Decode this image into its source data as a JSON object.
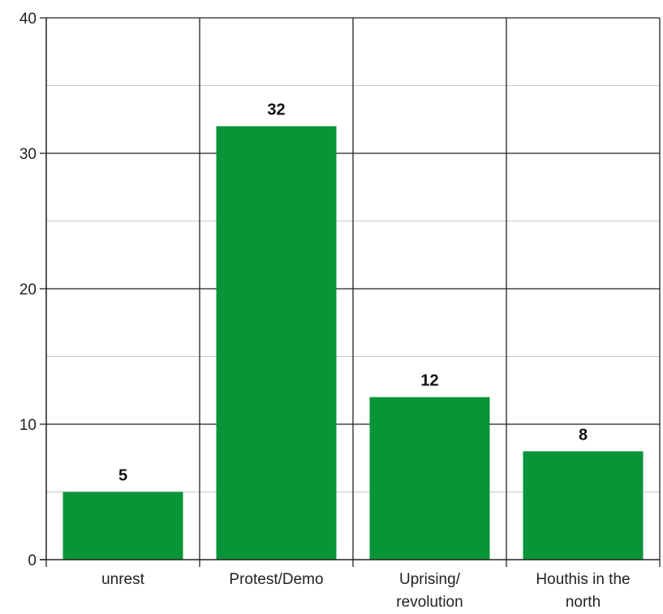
{
  "chart_data": {
    "type": "bar",
    "title": "",
    "xlabel": "",
    "ylabel": "",
    "ylim": [
      0,
      40
    ],
    "yticks": [
      0,
      10,
      20,
      30,
      40
    ],
    "minor_gridlines": [
      5,
      15,
      25,
      35
    ],
    "grid": true,
    "categories": [
      [
        "unrest"
      ],
      [
        "Protest/Demo"
      ],
      [
        "Uprising/",
        "revolution"
      ],
      [
        "Houthis in the",
        "north"
      ]
    ],
    "values": [
      5,
      32,
      12,
      8
    ],
    "data_labels": [
      "5",
      "32",
      "12",
      "8"
    ],
    "bar_color": "#0a9438",
    "axis_color": "#222222",
    "major_grid_color": "#222222",
    "minor_grid_color": "#c8c8c8"
  }
}
